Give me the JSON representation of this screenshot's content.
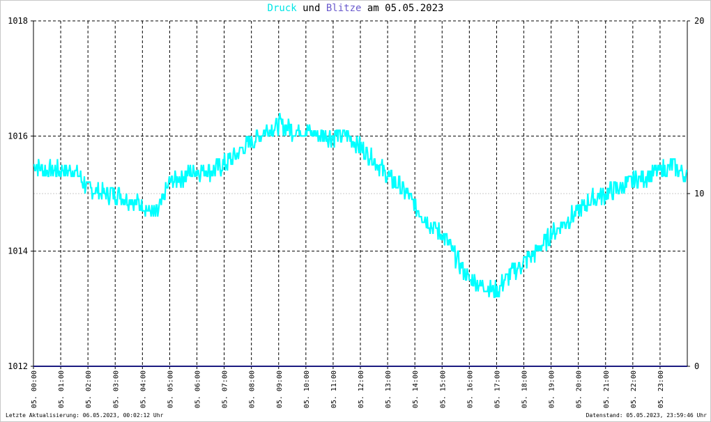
{
  "title": {
    "druck": "Druck",
    "und": "und",
    "blitze": "Blitze",
    "am": "am",
    "date": "05.05.2023"
  },
  "footer": {
    "left": "Letzte Aktualisierung: 06.05.2023, 00:02:12 Uhr",
    "right": "Datenstand: 05.05.2023, 23:59:46 Uhr"
  },
  "colors": {
    "druck": "#00ffff",
    "blitze": "#6a5acd",
    "axis": "#000000",
    "zero_line": "#1a1a80"
  },
  "chart_data": {
    "type": "line",
    "x_ticks": [
      "05. 00:00",
      "05. 01:00",
      "05. 02:00",
      "05. 03:00",
      "05. 04:00",
      "05. 05:00",
      "05. 06:00",
      "05. 07:00",
      "05. 08:00",
      "05. 09:00",
      "05. 10:00",
      "05. 11:00",
      "05. 12:00",
      "05. 13:00",
      "05. 14:00",
      "05. 15:00",
      "05. 16:00",
      "05. 17:00",
      "05. 18:00",
      "05. 19:00",
      "05. 20:00",
      "05. 21:00",
      "05. 22:00",
      "05. 23:00"
    ],
    "y_left": {
      "lim": [
        1012,
        1018
      ],
      "ticks": [
        "1012",
        "1014",
        "1016",
        "1018"
      ]
    },
    "y_right": {
      "lim": [
        0,
        20
      ],
      "ticks": [
        "0",
        "10",
        "20"
      ]
    },
    "grid": true,
    "series": [
      {
        "name": "Druck",
        "axis": "left",
        "x_hours": [
          0,
          0.5,
          1,
          1.5,
          2,
          2.5,
          3,
          3.5,
          4,
          4.5,
          5,
          5.5,
          6,
          6.5,
          7,
          7.5,
          8,
          8.5,
          9,
          9.5,
          10,
          10.5,
          11,
          11.5,
          12,
          12.5,
          13,
          13.5,
          14,
          14.5,
          15,
          15.5,
          16,
          16.5,
          17,
          17.5,
          18,
          18.5,
          19,
          19.5,
          20,
          20.5,
          21,
          21.5,
          22,
          22.5,
          23,
          23.5,
          24
        ],
        "values": [
          1015.5,
          1015.4,
          1015.4,
          1015.4,
          1015.1,
          1015.0,
          1015.0,
          1014.9,
          1014.8,
          1014.6,
          1015.2,
          1015.3,
          1015.4,
          1015.4,
          1015.5,
          1015.7,
          1015.9,
          1016.1,
          1016.2,
          1016.1,
          1016.1,
          1016.0,
          1016.0,
          1016.0,
          1015.8,
          1015.6,
          1015.3,
          1015.1,
          1014.8,
          1014.5,
          1014.3,
          1013.9,
          1013.5,
          1013.4,
          1013.3,
          1013.6,
          1013.8,
          1014.0,
          1014.3,
          1014.5,
          1014.7,
          1014.9,
          1015.0,
          1015.1,
          1015.2,
          1015.3,
          1015.4,
          1015.5,
          1015.3
        ]
      },
      {
        "name": "Blitze",
        "axis": "right",
        "x_hours": [
          0,
          24
        ],
        "values": [
          0,
          0
        ]
      }
    ]
  }
}
